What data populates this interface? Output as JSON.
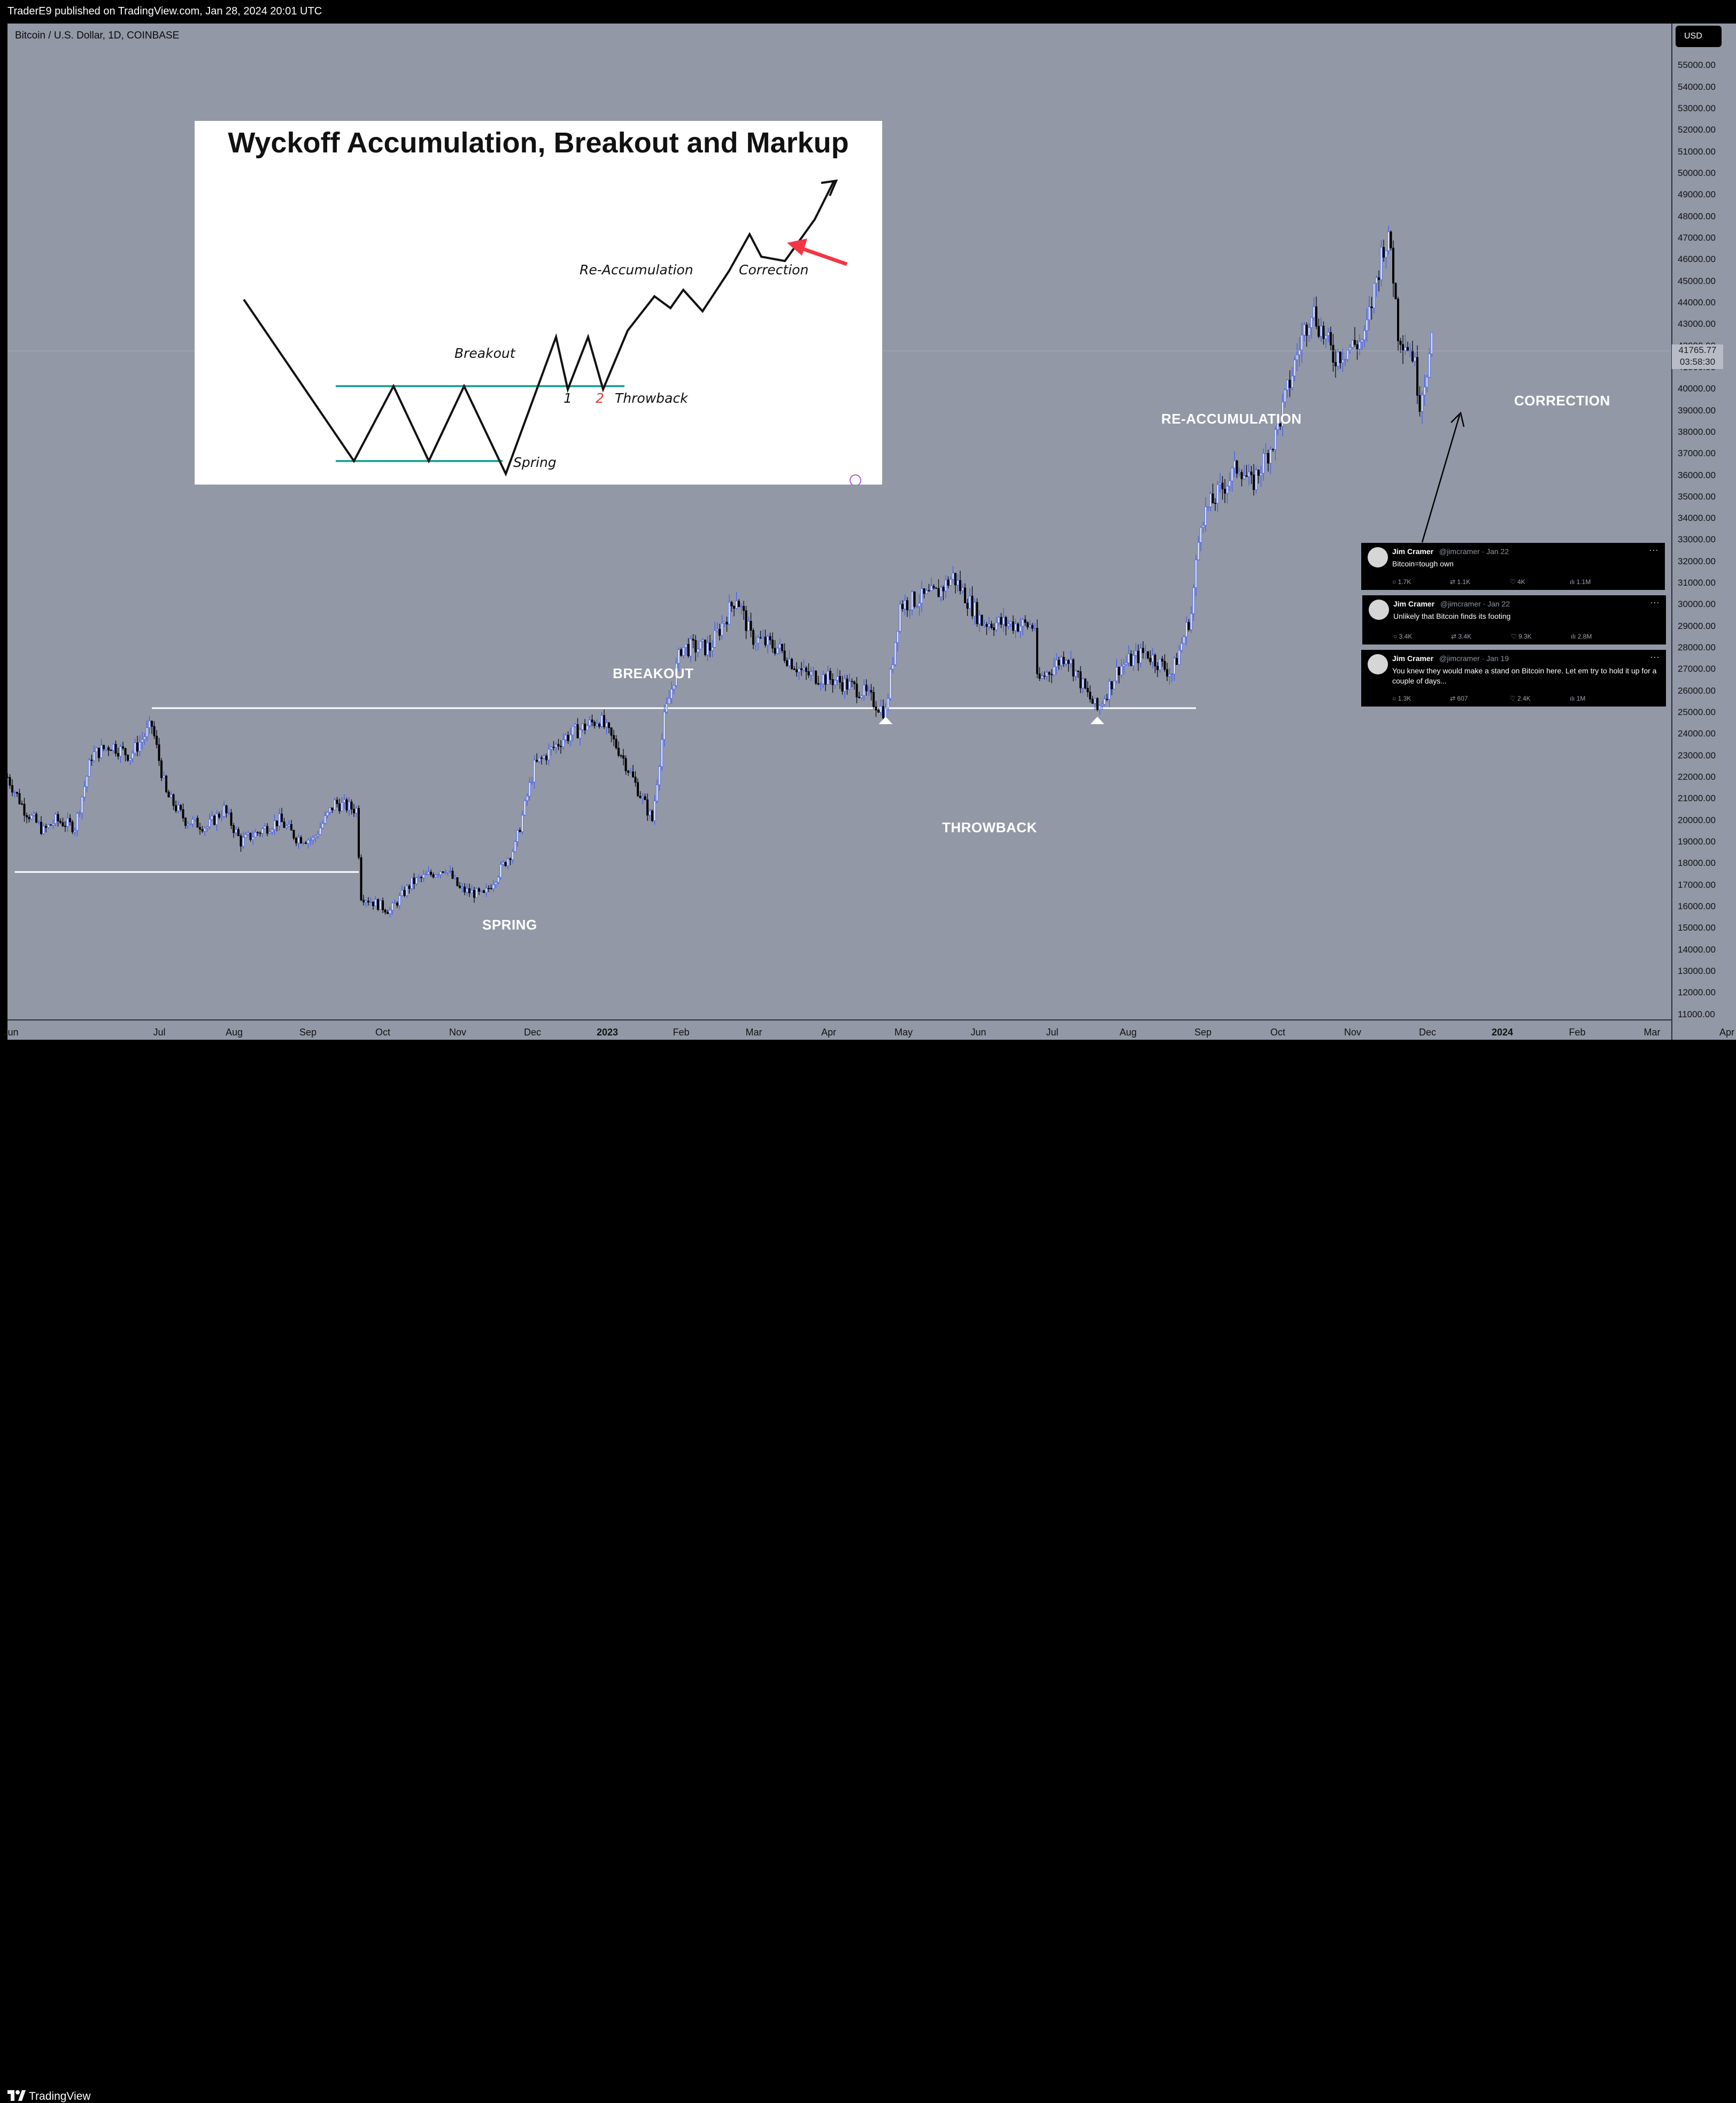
{
  "header": {
    "published": "TraderE9 published on TradingView.com, Jan 28, 2024 20:01 UTC"
  },
  "symbol": {
    "label": "Bitcoin / U.S. Dollar, 1D, COINBASE"
  },
  "axis": {
    "currency_button": "USD",
    "last_price": "41765.77",
    "countdown": "03:58:30"
  },
  "annotations": {
    "breakout": "BREAKOUT",
    "spring": "SPRING",
    "throwback": "THROWBACK",
    "reaccumulation": "RE-ACCUMULATION",
    "correction": "CORRECTION"
  },
  "inset": {
    "title": "Wyckoff Accumulation, Breakout and Markup",
    "labels": {
      "breakout": "Breakout",
      "reaccumulation": "Re-Accumulation",
      "correction": "Correction",
      "spring": "Spring",
      "throwback": "Throwback",
      "one": "1",
      "two": "2"
    }
  },
  "tweets": [
    {
      "name": "Jim Cramer",
      "handle": "@jimcramer · Jan 22",
      "text": "Bitcoin=tough own",
      "replies": "1.7K",
      "reposts": "1.1K",
      "likes": "4K",
      "views": "1.1M"
    },
    {
      "name": "Jim Cramer",
      "handle": "@jimcramer · Jan 22",
      "text": "Unlikely that Bitcoin finds its footing",
      "replies": "3.4K",
      "reposts": "3.4K",
      "likes": "9.3K",
      "views": "2.8M"
    },
    {
      "name": "Jim Cramer",
      "handle": "@jimcramer · Jan 19",
      "text": "You knew they would make a stand on Bitcoin here. Let em try to hold it up for a couple of days...",
      "replies": "1.3K",
      "reposts": "607",
      "likes": "2.4K",
      "views": "1M"
    }
  ],
  "footer": {
    "brand": "TradingView"
  },
  "colors": {
    "background": "#9298a5",
    "candle_up": "#3d5afe",
    "candle_down": "#000000",
    "inset_support": "#26a69a",
    "arrow_red": "#f23645"
  },
  "chart_data": {
    "type": "candlestick",
    "title": "Bitcoin / U.S. Dollar, 1D, COINBASE",
    "ylim": [
      11000,
      56000
    ],
    "y_ticks": [
      11000,
      12000,
      13000,
      14000,
      15000,
      16000,
      17000,
      18000,
      19000,
      20000,
      21000,
      22000,
      23000,
      24000,
      25000,
      26000,
      27000,
      28000,
      29000,
      30000,
      31000,
      32000,
      33000,
      34000,
      35000,
      36000,
      37000,
      38000,
      39000,
      40000,
      41000,
      42000,
      43000,
      44000,
      45000,
      46000,
      47000,
      48000,
      49000,
      50000,
      51000,
      52000,
      53000,
      54000,
      55000
    ],
    "x_ticks": [
      "Jun",
      "Jul",
      "Aug",
      "Sep",
      "Oct",
      "Nov",
      "Dec",
      "2023",
      "Feb",
      "Mar",
      "Apr",
      "May",
      "Jun",
      "Jul",
      "Aug",
      "Sep",
      "Oct",
      "Nov",
      "Dec",
      "2024",
      "Feb",
      "Mar",
      "Apr"
    ],
    "x_range": [
      "2022-06-15",
      "2024-04-26"
    ],
    "series": [
      {
        "points": [
          [
            "2022-06-15",
            22000
          ],
          [
            "2022-06-22",
            20500
          ],
          [
            "2022-06-30",
            19500
          ],
          [
            "2022-07-05",
            20000
          ],
          [
            "2022-07-13",
            19700
          ],
          [
            "2022-07-20",
            23000
          ],
          [
            "2022-07-28",
            23500
          ],
          [
            "2022-08-05",
            23000
          ],
          [
            "2022-08-14",
            24400
          ],
          [
            "2022-08-20",
            21200
          ],
          [
            "2022-08-28",
            20000
          ],
          [
            "2022-09-06",
            19700
          ],
          [
            "2022-09-13",
            20500
          ],
          [
            "2022-09-20",
            19000
          ],
          [
            "2022-09-28",
            19500
          ],
          [
            "2022-10-06",
            20000
          ],
          [
            "2022-10-13",
            19200
          ],
          [
            "2022-10-20",
            19100
          ],
          [
            "2022-10-29",
            20800
          ],
          [
            "2022-11-07",
            20500
          ],
          [
            "2022-11-09",
            16500
          ],
          [
            "2022-11-21",
            15800
          ],
          [
            "2022-11-30",
            17100
          ],
          [
            "2022-12-14",
            17800
          ],
          [
            "2022-12-20",
            16800
          ],
          [
            "2022-12-30",
            16500
          ],
          [
            "2023-01-12",
            18800
          ],
          [
            "2023-01-20",
            22500
          ],
          [
            "2023-02-01",
            23800
          ],
          [
            "2023-02-16",
            24700
          ],
          [
            "2023-02-25",
            23100
          ],
          [
            "2023-03-10",
            20000
          ],
          [
            "2023-03-15",
            24700
          ],
          [
            "2023-03-22",
            28000
          ],
          [
            "2023-04-03",
            28000
          ],
          [
            "2023-04-14",
            30400
          ],
          [
            "2023-04-20",
            28500
          ],
          [
            "2023-05-01",
            28000
          ],
          [
            "2023-05-12",
            26800
          ],
          [
            "2023-05-25",
            26500
          ],
          [
            "2023-06-05",
            26000
          ],
          [
            "2023-06-15",
            25000
          ],
          [
            "2023-06-21",
            30000
          ],
          [
            "2023-07-06",
            30500
          ],
          [
            "2023-07-13",
            31300
          ],
          [
            "2023-07-25",
            29200
          ],
          [
            "2023-08-07",
            29100
          ],
          [
            "2023-08-16",
            29000
          ],
          [
            "2023-08-17",
            26400
          ],
          [
            "2023-08-29",
            27700
          ],
          [
            "2023-09-07",
            25800
          ],
          [
            "2023-09-11",
            25100
          ],
          [
            "2023-09-20",
            27100
          ],
          [
            "2023-10-01",
            27800
          ],
          [
            "2023-10-12",
            26800
          ],
          [
            "2023-10-20",
            29600
          ],
          [
            "2023-10-24",
            34000
          ],
          [
            "2023-11-09",
            36500
          ],
          [
            "2023-11-14",
            35500
          ],
          [
            "2023-11-24",
            37800
          ],
          [
            "2023-12-04",
            42000
          ],
          [
            "2023-12-09",
            43800
          ],
          [
            "2023-12-18",
            41500
          ],
          [
            "2023-12-31",
            42300
          ],
          [
            "2024-01-08",
            46800
          ],
          [
            "2024-01-11",
            46600
          ],
          [
            "2024-01-14",
            42700
          ],
          [
            "2024-01-20",
            41700
          ],
          [
            "2024-01-23",
            39500
          ],
          [
            "2024-01-28",
            42000
          ]
        ]
      }
    ],
    "support_lines": [
      {
        "y": 17600,
        "from": "2022-06-18",
        "to": "2022-11-08"
      },
      {
        "y": 25200,
        "from": "2022-08-14",
        "to": "2023-10-22"
      }
    ]
  }
}
